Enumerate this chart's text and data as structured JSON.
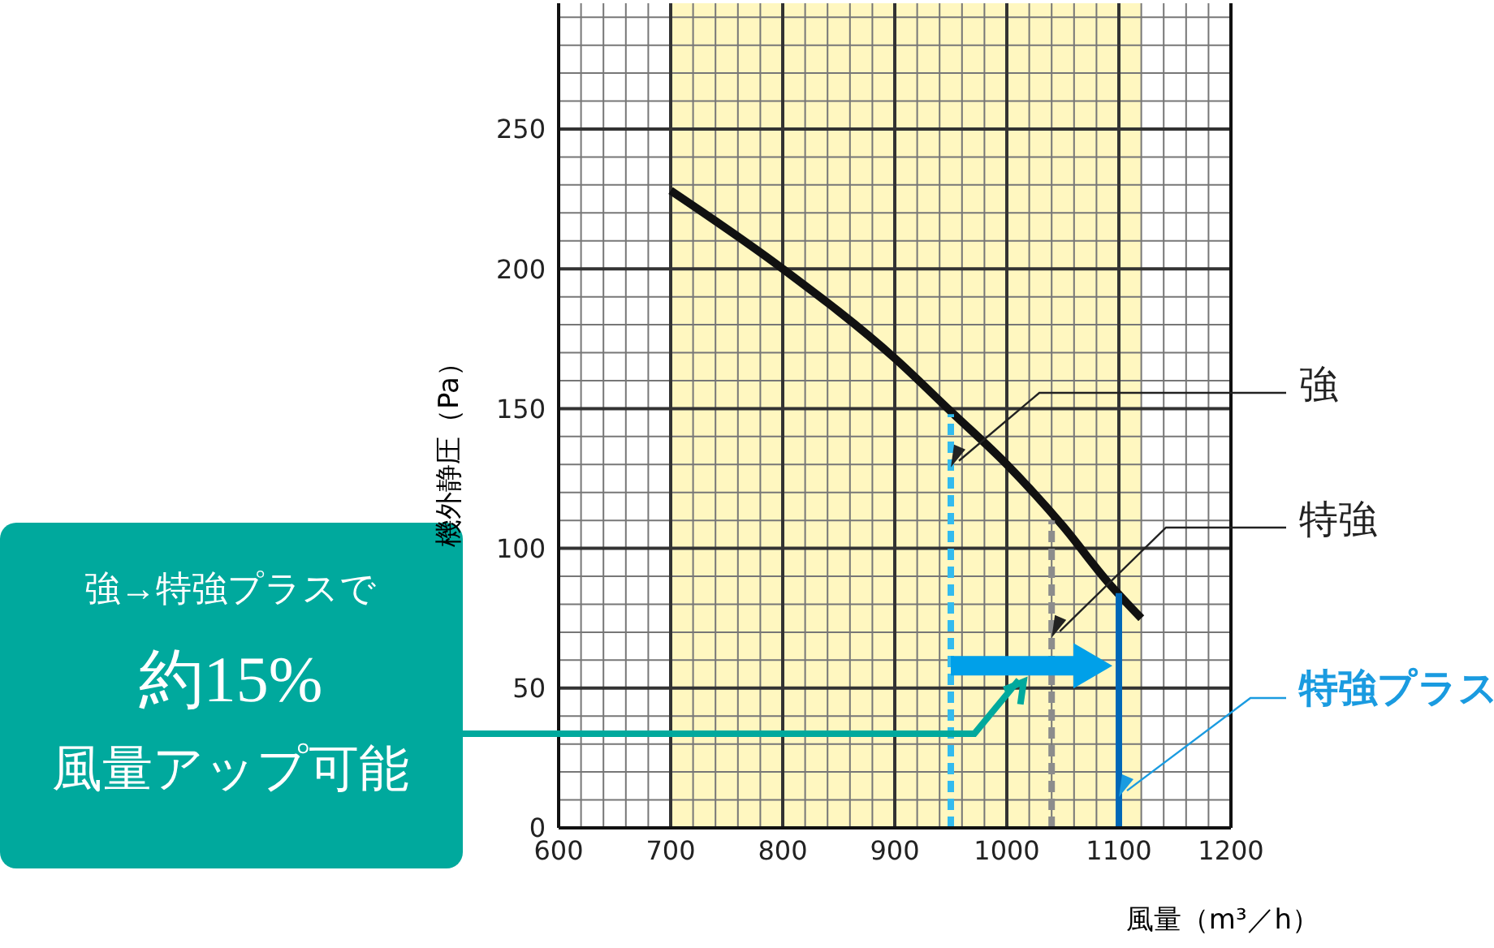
{
  "chart_data": {
    "type": "line",
    "xlabel": "風量（m³／h）",
    "ylabel": "機外静圧（Pa）",
    "xlim": [
      600,
      1200
    ],
    "xticks": [
      600,
      700,
      800,
      900,
      1000,
      1100,
      1200
    ],
    "ylim": [
      0,
      295
    ],
    "yticks": [
      0,
      50,
      100,
      150,
      200,
      250
    ],
    "grid": true,
    "marker": "none",
    "bands": [
      {
        "axis": "x",
        "from": 700,
        "to": 1120,
        "color": "#fff7c0"
      }
    ],
    "series": [
      {
        "color": "#111111",
        "x": [
          700,
          800,
          900,
          950,
          1000,
          1050,
          1090,
          1120
        ],
        "values": [
          228,
          200,
          168,
          149,
          130,
          108,
          88,
          75
        ],
        "line_style": "solid"
      },
      {
        "color": "#33bbee",
        "x": [
          950,
          950
        ],
        "values": [
          0,
          148
        ],
        "line_style": "dashed"
      },
      {
        "color": "#8c8c8c",
        "x": [
          1040,
          1040
        ],
        "values": [
          0,
          110
        ],
        "line_style": "dashed"
      },
      {
        "color": "#0068b7",
        "x": [
          1100,
          1100
        ],
        "values": [
          0,
          84
        ],
        "line_style": "solid"
      }
    ],
    "annotations": [
      {
        "text": "強",
        "x": 950,
        "y": 129
      },
      {
        "text": "特強",
        "x": 1040,
        "y": 68
      },
      {
        "text": "特強プラス",
        "x": 1100,
        "y": 11
      },
      "強→特強プラスで",
      "約15%",
      "風量アップ可能"
    ]
  }
}
